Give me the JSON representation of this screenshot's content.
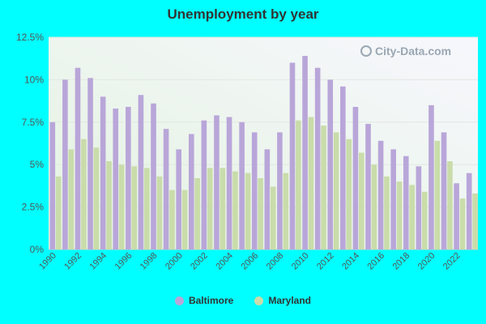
{
  "chart_data": {
    "type": "bar",
    "title": "Unemployment by year",
    "xlabel": "",
    "ylabel": "",
    "ylim": [
      0,
      12.5
    ],
    "y_ticks": [
      "0%",
      "2.5%",
      "5%",
      "7.5%",
      "10%",
      "12.5%"
    ],
    "y_tick_values": [
      0,
      2.5,
      5,
      7.5,
      10,
      12.5
    ],
    "categories": [
      "1990",
      "1991",
      "1992",
      "1993",
      "1994",
      "1995",
      "1996",
      "1997",
      "1998",
      "1999",
      "2000",
      "2001",
      "2002",
      "2003",
      "2004",
      "2005",
      "2006",
      "2007",
      "2008",
      "2009",
      "2010",
      "2011",
      "2012",
      "2013",
      "2014",
      "2015",
      "2016",
      "2017",
      "2018",
      "2019",
      "2020",
      "2021",
      "2022",
      "2023"
    ],
    "x_tick_labels": [
      "1990",
      "1992",
      "1994",
      "1996",
      "1998",
      "2000",
      "2002",
      "2004",
      "2006",
      "2008",
      "2010",
      "2012",
      "2014",
      "2016",
      "2018",
      "2020",
      "2022"
    ],
    "series": [
      {
        "name": "Baltimore",
        "color": "#b9a6d9",
        "values": [
          7.5,
          10.0,
          10.7,
          10.1,
          9.0,
          8.3,
          8.4,
          9.1,
          8.6,
          7.1,
          5.9,
          6.8,
          7.6,
          7.9,
          7.8,
          7.5,
          6.9,
          5.9,
          6.9,
          11.0,
          11.4,
          10.7,
          10.0,
          9.6,
          8.4,
          7.4,
          6.4,
          5.9,
          5.5,
          4.9,
          8.5,
          6.9,
          3.9,
          4.5
        ]
      },
      {
        "name": "Maryland",
        "color": "#c9dcaa",
        "values": [
          4.3,
          5.9,
          6.5,
          6.0,
          5.2,
          5.0,
          4.9,
          4.8,
          4.3,
          3.5,
          3.5,
          4.2,
          4.8,
          4.8,
          4.6,
          4.5,
          4.2,
          3.7,
          4.5,
          7.6,
          7.8,
          7.3,
          6.9,
          6.5,
          5.7,
          5.0,
          4.3,
          4.0,
          3.8,
          3.4,
          6.4,
          5.2,
          3.0,
          3.3
        ]
      }
    ],
    "grid": true,
    "legend_position": "bottom-center"
  },
  "watermark": {
    "text": "City-Data.com",
    "icon": "magnifier-icon"
  },
  "colors": {
    "background": "#00ffff",
    "plot_bg_start": "#e6f5e6",
    "plot_bg_end": "#f5f5fc"
  }
}
